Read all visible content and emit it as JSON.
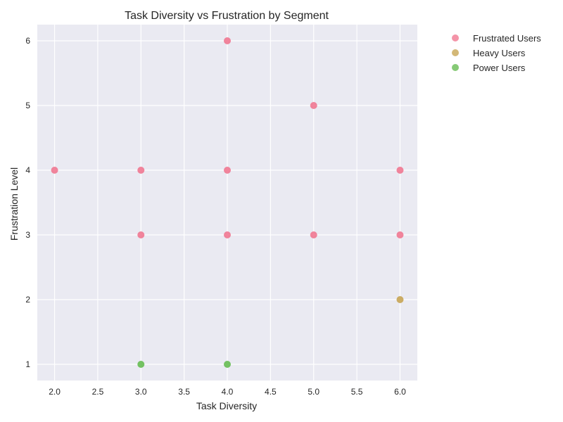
{
  "chart_data": {
    "type": "scatter",
    "title": "Task Diversity vs Frustration by Segment",
    "xlabel": "Task Diversity",
    "ylabel": "Frustration Level",
    "xlim": [
      1.8,
      6.2
    ],
    "ylim": [
      0.75,
      6.25
    ],
    "xticks": [
      "2.0",
      "2.5",
      "3.0",
      "3.5",
      "4.0",
      "4.5",
      "5.0",
      "5.5",
      "6.0"
    ],
    "yticks": [
      "1",
      "2",
      "3",
      "4",
      "5",
      "6"
    ],
    "grid": true,
    "legend_position": "outside-right",
    "series": [
      {
        "name": "Frustrated Users",
        "color": "#f0708b",
        "points": [
          {
            "x": 2,
            "y": 4
          },
          {
            "x": 3,
            "y": 4
          },
          {
            "x": 3,
            "y": 3
          },
          {
            "x": 4,
            "y": 6
          },
          {
            "x": 4,
            "y": 4
          },
          {
            "x": 4,
            "y": 3
          },
          {
            "x": 5,
            "y": 5
          },
          {
            "x": 5,
            "y": 3
          },
          {
            "x": 6,
            "y": 4
          },
          {
            "x": 6,
            "y": 3
          }
        ]
      },
      {
        "name": "Heavy Users",
        "color": "#c4a04a",
        "points": [
          {
            "x": 6,
            "y": 2
          }
        ]
      },
      {
        "name": "Power Users",
        "color": "#5db848",
        "points": [
          {
            "x": 3,
            "y": 1
          },
          {
            "x": 4,
            "y": 1
          }
        ]
      }
    ]
  }
}
